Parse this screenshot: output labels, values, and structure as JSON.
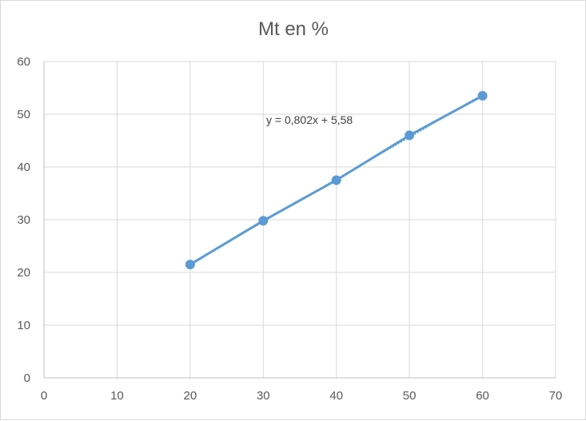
{
  "chart_data": {
    "type": "scatter",
    "title": "Mt en %",
    "xlabel": "",
    "ylabel": "",
    "xlim": [
      0,
      70
    ],
    "ylim": [
      0,
      60
    ],
    "x_ticks": [
      0,
      10,
      20,
      30,
      40,
      50,
      60,
      70
    ],
    "y_ticks": [
      0,
      10,
      20,
      30,
      40,
      50,
      60
    ],
    "grid": true,
    "legend": "none",
    "series": [
      {
        "x": [
          20,
          30,
          40,
          50,
          60
        ],
        "y": [
          21.5,
          29.8,
          37.5,
          46,
          53.5
        ],
        "color": "#5b9bd5",
        "lines": true,
        "markers": true
      }
    ],
    "trendline": {
      "type": "linear",
      "slope": 0.802,
      "intercept": 5.58,
      "style": "dotted",
      "color": "#5b9bd5",
      "x_range": [
        20,
        60
      ]
    },
    "annotations": [
      {
        "text": "y = 0,802x + 5,58"
      }
    ],
    "colors": {
      "series": "#5b9bd5",
      "grid": "#d9d9d9",
      "text": "#595959"
    }
  }
}
